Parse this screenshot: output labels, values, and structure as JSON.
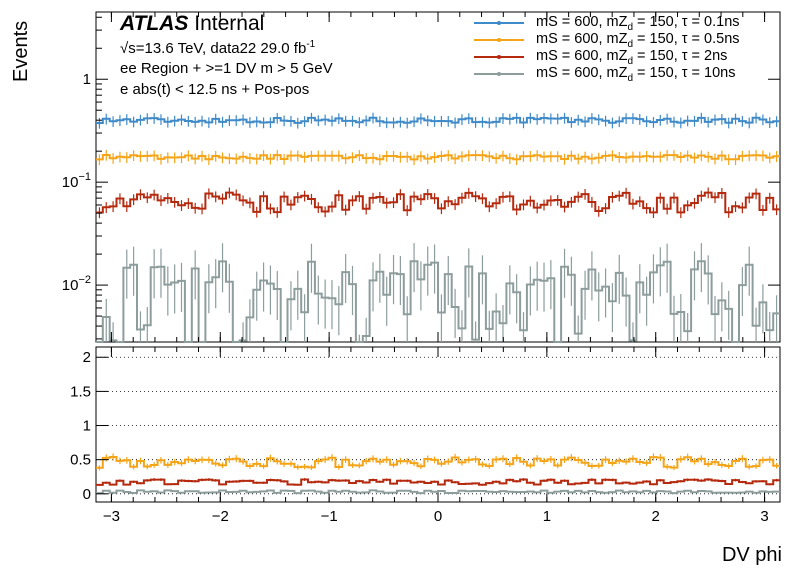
{
  "header": {
    "atlas": "ATLAS",
    "internal": "Internal",
    "lumi_text": "√s=13.6 TeV, data22 29.0 fb",
    "lumi_sup": "-1",
    "region": "ee Region + >=1 DV m > 5 GeV",
    "cut": "e abs(t) < 12.5 ns + Pos-pos"
  },
  "colors": {
    "tau_0p1ns": "#3f8ac9",
    "tau_0p5ns": "#f5a418",
    "tau_2ns": "#b52a0f",
    "tau_10ns": "#8d9d9c"
  },
  "chart_data": [
    {
      "type": "line",
      "title": "",
      "xlabel": "DV phi",
      "ylabel": "Events",
      "yscale": "log",
      "xlim": [
        -3.1416,
        3.1416
      ],
      "ylim": [
        0.0028,
        4.5
      ],
      "x_ticks": [
        -3,
        -2,
        -1,
        0,
        1,
        2,
        3
      ],
      "x_tick_labels": [
        "−3",
        "−2",
        "−1",
        "0",
        "1",
        "2",
        "3"
      ],
      "y_ticks": [
        0.01,
        0.1,
        1
      ],
      "y_tick_labels": [
        {
          "base": "10",
          "exp": "−2"
        },
        {
          "base": "10",
          "exp": "−1"
        },
        {
          "base": "1",
          "exp": ""
        }
      ],
      "legend_position": "top-right",
      "n_bins": 100,
      "series": [
        {
          "name": "mS = 600, mZ_d = 150, τ = 0.1ns",
          "base": "mS = 600, mZ",
          "sub": "d",
          "tail": " = 150, τ = 0.1ns",
          "color_key": "tau_0p1ns",
          "level": 0.4,
          "spread": 0.06
        },
        {
          "name": "mS = 600, mZ_d = 150, τ = 0.5ns",
          "base": "mS = 600, mZ",
          "sub": "d",
          "tail": " = 150, τ = 0.5ns",
          "color_key": "tau_0p5ns",
          "level": 0.175,
          "spread": 0.05
        },
        {
          "name": "mS = 600, mZ_d = 150, τ = 2ns",
          "base": "mS = 600, mZ",
          "sub": "d",
          "tail": " = 150, τ = 2ns",
          "color_key": "tau_2ns",
          "level": 0.065,
          "spread": 0.22
        },
        {
          "name": "mS = 600, mZ_d = 150, τ = 10ns",
          "base": "mS = 600, mZ",
          "sub": "d",
          "tail": " = 150, τ = 10ns",
          "color_key": "tau_10ns",
          "level": 0.009,
          "spread": 0.9
        }
      ]
    },
    {
      "type": "line",
      "title": "",
      "xlabel": "DV phi",
      "ylabel": "",
      "xlim": [
        -3.1416,
        3.1416
      ],
      "ylim": [
        -0.12,
        2.15
      ],
      "y_ticks": [
        0,
        0.5,
        1,
        1.5,
        2
      ],
      "y_tick_labels": [
        "0",
        "0.5",
        "1",
        "1.5",
        "2"
      ],
      "grid": true,
      "series": [
        {
          "color_key": "tau_0p5ns",
          "level": 0.46,
          "spread": 0.08
        },
        {
          "color_key": "tau_2ns",
          "level": 0.17,
          "spread": 0.04
        },
        {
          "color_key": "tau_10ns",
          "level": 0.03,
          "spread": 0.02
        }
      ]
    }
  ]
}
